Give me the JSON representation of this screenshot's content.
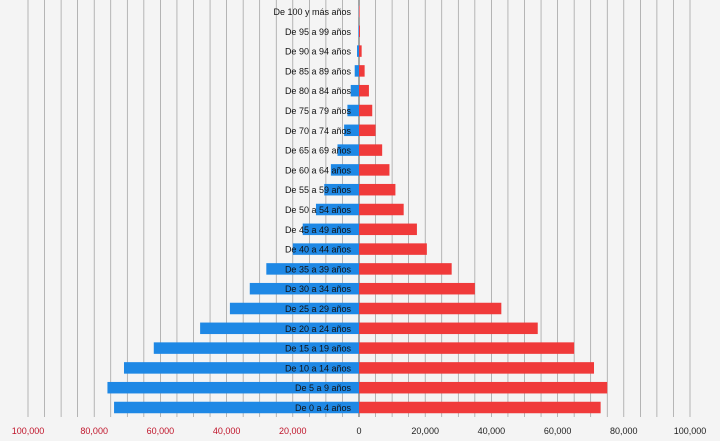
{
  "chart_data": {
    "type": "bar",
    "orientation": "horizontal",
    "layout": "population-pyramid",
    "categories": [
      "De 0 a 4 años",
      "De 5 a 9 años",
      "De 10 a 14 años",
      "De 15 a 19 años",
      "De 20 a 24 años",
      "De 25 a 29 años",
      "De 30 a 34 años",
      "De 35 a 39 años",
      "De 40 a 44 años",
      "De 45 a 49 años",
      "De 50 a 54 años",
      "De 55 a 59 años",
      "De 60 a 64 años",
      "De 65 a 69 años",
      "De 70 a 74 años",
      "De 75 a 79 años",
      "De 80 a 84 años",
      "De 85 a 89 años",
      "De 90 a 94 años",
      "De 95 a 99 años",
      "De 100 y más años"
    ],
    "series": [
      {
        "side": "left",
        "color": "#1e88e5",
        "values": [
          74000,
          76000,
          71000,
          62000,
          48000,
          39000,
          33000,
          28000,
          20000,
          17000,
          13000,
          10500,
          8500,
          6500,
          4500,
          3500,
          2500,
          1300,
          600,
          200,
          50
        ]
      },
      {
        "side": "right",
        "color": "#f03a3a",
        "values": [
          73000,
          75000,
          71000,
          65000,
          54000,
          43000,
          35000,
          28000,
          20500,
          17500,
          13500,
          11000,
          9200,
          7000,
          5000,
          4000,
          3000,
          1700,
          800,
          300,
          80
        ]
      }
    ],
    "xlim": [
      -100000,
      100000
    ],
    "x_ticks": [
      {
        "value": -100000,
        "label": "100,000"
      },
      {
        "value": -80000,
        "label": "80,000"
      },
      {
        "value": -60000,
        "label": "60,000"
      },
      {
        "value": -40000,
        "label": "40,000"
      },
      {
        "value": -20000,
        "label": "20,000"
      },
      {
        "value": 0,
        "label": "0"
      },
      {
        "value": 20000,
        "label": "20,000"
      },
      {
        "value": 40000,
        "label": "40,000"
      },
      {
        "value": 60000,
        "label": "60,000"
      },
      {
        "value": 80000,
        "label": "80,000"
      },
      {
        "value": 100000,
        "label": "100,000"
      }
    ],
    "x_minor_step": 5000,
    "grid": true,
    "legend": "none",
    "negative_tick_color": "#c0142a",
    "positive_tick_color": "#222222"
  }
}
